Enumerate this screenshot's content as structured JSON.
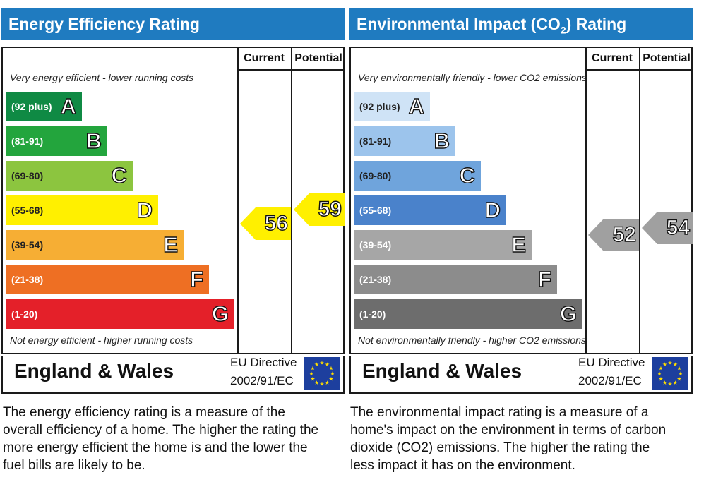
{
  "chart_data": [
    {
      "type": "bar",
      "title": "Energy Efficiency Rating",
      "top_note": "Very energy efficient - lower running costs",
      "bottom_note": "Not energy efficient - higher running costs",
      "columns": [
        "Current",
        "Potential"
      ],
      "bands": [
        {
          "label": "A",
          "range": "(92 plus)",
          "color": "#0f8a44"
        },
        {
          "label": "B",
          "range": "(81-91)",
          "color": "#23a53d"
        },
        {
          "label": "C",
          "range": "(69-80)",
          "color": "#8cc53f"
        },
        {
          "label": "D",
          "range": "(55-68)",
          "color": "#fff000"
        },
        {
          "label": "E",
          "range": "(39-54)",
          "color": "#f6ae34"
        },
        {
          "label": "F",
          "range": "(21-38)",
          "color": "#ee6f23"
        },
        {
          "label": "G",
          "range": "(1-20)",
          "color": "#e42029"
        }
      ],
      "current": 56,
      "potential": 59,
      "arrow_color": "#fff000",
      "region": "England & Wales",
      "directive_line1": "EU Directive",
      "directive_line2": "2002/91/EC"
    },
    {
      "type": "bar",
      "title_parts": [
        "Environmental Impact (CO",
        "2",
        ") Rating"
      ],
      "top_note": "Very environmentally friendly - lower CO2 emissions",
      "bottom_note": "Not environmentally friendly - higher CO2 emissions",
      "columns": [
        "Current",
        "Potential"
      ],
      "bands": [
        {
          "label": "A",
          "range": "(92 plus)",
          "color": "#cfe3f6"
        },
        {
          "label": "B",
          "range": "(81-91)",
          "color": "#9cc4ec"
        },
        {
          "label": "C",
          "range": "(69-80)",
          "color": "#6fa4dc"
        },
        {
          "label": "D",
          "range": "(55-68)",
          "color": "#4a82cb"
        },
        {
          "label": "E",
          "range": "(39-54)",
          "color": "#a6a6a6"
        },
        {
          "label": "F",
          "range": "(21-38)",
          "color": "#8c8c8c"
        },
        {
          "label": "G",
          "range": "(1-20)",
          "color": "#6d6d6d"
        }
      ],
      "current": 52,
      "potential": 54,
      "arrow_color": "#a0a0a0",
      "region": "England & Wales",
      "directive_line1": "EU Directive",
      "directive_line2": "2002/91/EC"
    }
  ],
  "descriptions": [
    "The energy efficiency rating is a measure of the overall efficiency of a home. The higher the rating the more energy efficient the home is and the lower the fuel bills are likely to be.",
    "The environmental impact rating is a measure of a home's impact on the environment in terms of carbon dioxide (CO2) emissions. The higher the rating the less impact it has on the environment."
  ],
  "icons": {
    "flag": "eu-flag-icon",
    "flag_star_color": "#ffde00"
  }
}
